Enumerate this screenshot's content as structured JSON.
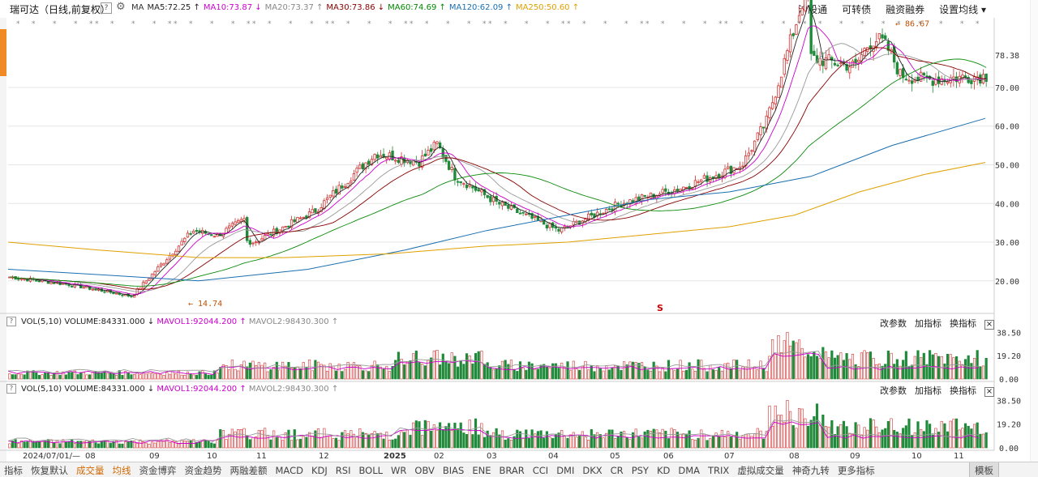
{
  "header": {
    "title": "瑞可达（日线,前复权）",
    "help": "?",
    "ma_items": [
      {
        "label": "MA",
        "color": "#333333"
      },
      {
        "label": "MA5:72.25",
        "arrow": "↑",
        "color": "#222222"
      },
      {
        "label": "MA10:73.87",
        "arrow": "↓",
        "color": "#cc00cc"
      },
      {
        "label": "MA20:73.37",
        "arrow": "↑",
        "color": "#888888"
      },
      {
        "label": "MA30:73.86",
        "arrow": "↓",
        "color": "#880000"
      },
      {
        "label": "MA60:74.69",
        "arrow": "↑",
        "color": "#008800"
      },
      {
        "label": "MA120:62.09",
        "arrow": "↑",
        "color": "#1a6fb0"
      },
      {
        "label": "MA250:50.60",
        "arrow": "↑",
        "color": "#e0a000"
      }
    ],
    "menu": [
      "沪股通",
      "可转债",
      "融资融券",
      "设置均线 ▾"
    ]
  },
  "price_panel": {
    "y_ticks": [
      "78.38",
      "70.00",
      "60.00",
      "50.00",
      "40.00",
      "30.00",
      "20.00"
    ],
    "high_label": "86.67",
    "low_label": "14.74",
    "s_marker": "S"
  },
  "vol_panels": [
    {
      "q": "?",
      "label": "VOL(5,10)",
      "volume": "VOLUME:84331.000",
      "mavol1": "MAVOL1:92044.200",
      "mavol2": "MAVOL2:98430.300",
      "buttons": [
        "改参数",
        "加指标",
        "换指标"
      ],
      "close": "×",
      "y_ticks": [
        "38.50",
        "19.20",
        "0.00"
      ]
    },
    {
      "q": "?",
      "label": "VOL(5,10)",
      "volume": "VOLUME:84331.000",
      "mavol1": "MAVOL1:92044.200",
      "mavol2": "MAVOL2:98430.300",
      "buttons": [
        "改参数",
        "加指标",
        "换指标"
      ],
      "close": "×",
      "y_ticks": [
        "38.50",
        "19.20",
        "0.00"
      ]
    }
  ],
  "date_axis": [
    "2024/07/01/—",
    "08",
    "09",
    "10",
    "11",
    "12",
    "2025",
    "02",
    "03",
    "04",
    "05",
    "06",
    "07",
    "08",
    "09",
    "10",
    "11"
  ],
  "bottom_tabs": [
    "指标",
    "恢复默认",
    "成交量",
    "均线",
    "资金博弈",
    "资金趋势",
    "两融差额",
    "MACD",
    "KDJ",
    "RSI",
    "BOLL",
    "WR",
    "OBV",
    "BIAS",
    "ENE",
    "BRAR",
    "CCI",
    "DMI",
    "DKX",
    "CR",
    "PSY",
    "KD",
    "DMA",
    "TRIX",
    "虚拟成交量",
    "神奇九转",
    "更多指标"
  ],
  "bottom_end": "模板",
  "chart_data": {
    "type": "candlestick",
    "title": "瑞可达（日线,前复权）",
    "price_range": [
      14.74,
      86.67
    ],
    "y_ticks": [
      20,
      30,
      40,
      50,
      60,
      70,
      78.38
    ],
    "closes_by_month": [
      {
        "month": "2024/07",
        "close": 21.0
      },
      {
        "month": "08",
        "close": 19.0
      },
      {
        "month": "09",
        "close": 16.0
      },
      {
        "month": "10",
        "close": 33.0
      },
      {
        "month": "11",
        "close": 30.0
      },
      {
        "month": "12",
        "close": 38.0
      },
      {
        "month": "2025",
        "close": 53.0
      },
      {
        "month": "02",
        "close": 50.0
      },
      {
        "month": "03",
        "close": 40.0
      },
      {
        "month": "04",
        "close": 33.0
      },
      {
        "month": "05",
        "close": 40.0
      },
      {
        "month": "06",
        "close": 44.0
      },
      {
        "month": "07",
        "close": 50.0
      },
      {
        "month": "08",
        "close": 78.0
      },
      {
        "month": "09",
        "close": 75.0
      },
      {
        "month": "10",
        "close": 72.0
      },
      {
        "month": "11",
        "close": 73.0
      }
    ],
    "moving_averages": [
      {
        "name": "MA120",
        "last": 62.09
      },
      {
        "name": "MA250",
        "last": 50.6
      }
    ],
    "volume_range": [
      0,
      38.5
    ]
  }
}
